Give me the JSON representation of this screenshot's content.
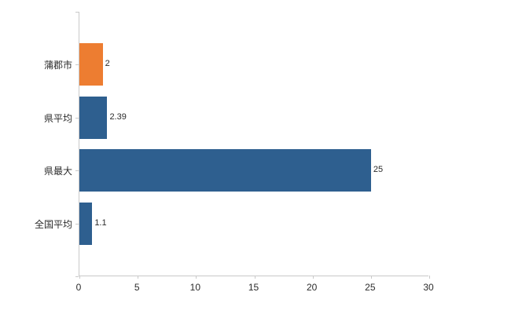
{
  "chart_data": {
    "type": "bar",
    "orientation": "horizontal",
    "title": "",
    "xlabel": "",
    "ylabel": "",
    "categories": [
      "蒲郡市",
      "県平均",
      "県最大",
      "全国平均"
    ],
    "values": [
      2,
      2.39,
      25,
      1.1
    ],
    "value_labels": [
      "2",
      "2.39",
      "25",
      "1.1"
    ],
    "bar_colors": [
      "#ED7D31",
      "#2E5F8F",
      "#2E5F8F",
      "#2E5F8F"
    ],
    "xlim": [
      0,
      30
    ],
    "x_ticks": [
      0,
      5,
      10,
      15,
      20,
      25,
      30
    ],
    "grid": false,
    "legend": false
  },
  "colors": {
    "background": "#ffffff",
    "axis": "#c9c9c9",
    "text": "#2b2b2b",
    "highlight_bar": "#ED7D31",
    "default_bar": "#2E5F8F"
  }
}
